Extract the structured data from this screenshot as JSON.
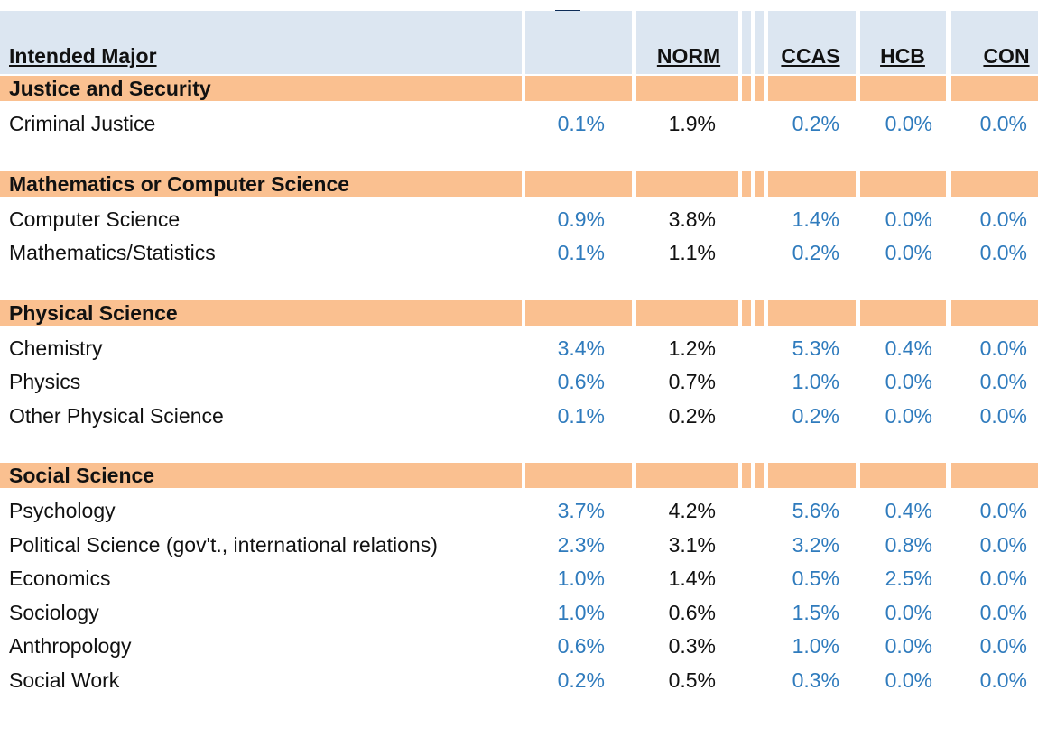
{
  "table": {
    "header": [
      "Intended Major",
      "NORM",
      "CCAS",
      "HCB",
      "CON"
    ],
    "sections": [
      {
        "title": "Justice and Security",
        "rows": [
          {
            "label": "Criminal Justice",
            "values": [
              "0.1%",
              "1.9%",
              "0.2%",
              "0.0%",
              "0.0%"
            ]
          }
        ]
      },
      {
        "title": "Mathematics or Computer Science",
        "rows": [
          {
            "label": "Computer Science",
            "values": [
              "0.9%",
              "3.8%",
              "1.4%",
              "0.0%",
              "0.0%"
            ]
          },
          {
            "label": "Mathematics/Statistics",
            "values": [
              "0.1%",
              "1.1%",
              "0.2%",
              "0.0%",
              "0.0%"
            ]
          }
        ]
      },
      {
        "title": "Physical Science",
        "rows": [
          {
            "label": "Chemistry",
            "values": [
              "3.4%",
              "1.2%",
              "5.3%",
              "0.4%",
              "0.0%"
            ]
          },
          {
            "label": "Physics",
            "values": [
              "0.6%",
              "0.7%",
              "1.0%",
              "0.0%",
              "0.0%"
            ]
          },
          {
            "label": "Other Physical Science",
            "values": [
              "0.1%",
              "0.2%",
              "0.2%",
              "0.0%",
              "0.0%"
            ]
          }
        ]
      },
      {
        "title": "Social Science",
        "rows": [
          {
            "label": "Psychology",
            "values": [
              "3.7%",
              "4.2%",
              "5.6%",
              "0.4%",
              "0.0%"
            ]
          },
          {
            "label": "Political Science (gov't., international relations)",
            "values": [
              "2.3%",
              "3.1%",
              "3.2%",
              "0.8%",
              "0.0%"
            ]
          },
          {
            "label": "Economics",
            "values": [
              "1.0%",
              "1.4%",
              "0.5%",
              "2.5%",
              "0.0%"
            ]
          },
          {
            "label": "Sociology",
            "values": [
              "1.0%",
              "0.6%",
              "1.5%",
              "0.0%",
              "0.0%"
            ]
          },
          {
            "label": "Anthropology",
            "values": [
              "0.6%",
              "0.3%",
              "1.0%",
              "0.0%",
              "0.0%"
            ]
          },
          {
            "label": "Social Work",
            "values": [
              "0.2%",
              "0.5%",
              "0.3%",
              "0.0%",
              "0.0%"
            ]
          }
        ]
      }
    ]
  }
}
